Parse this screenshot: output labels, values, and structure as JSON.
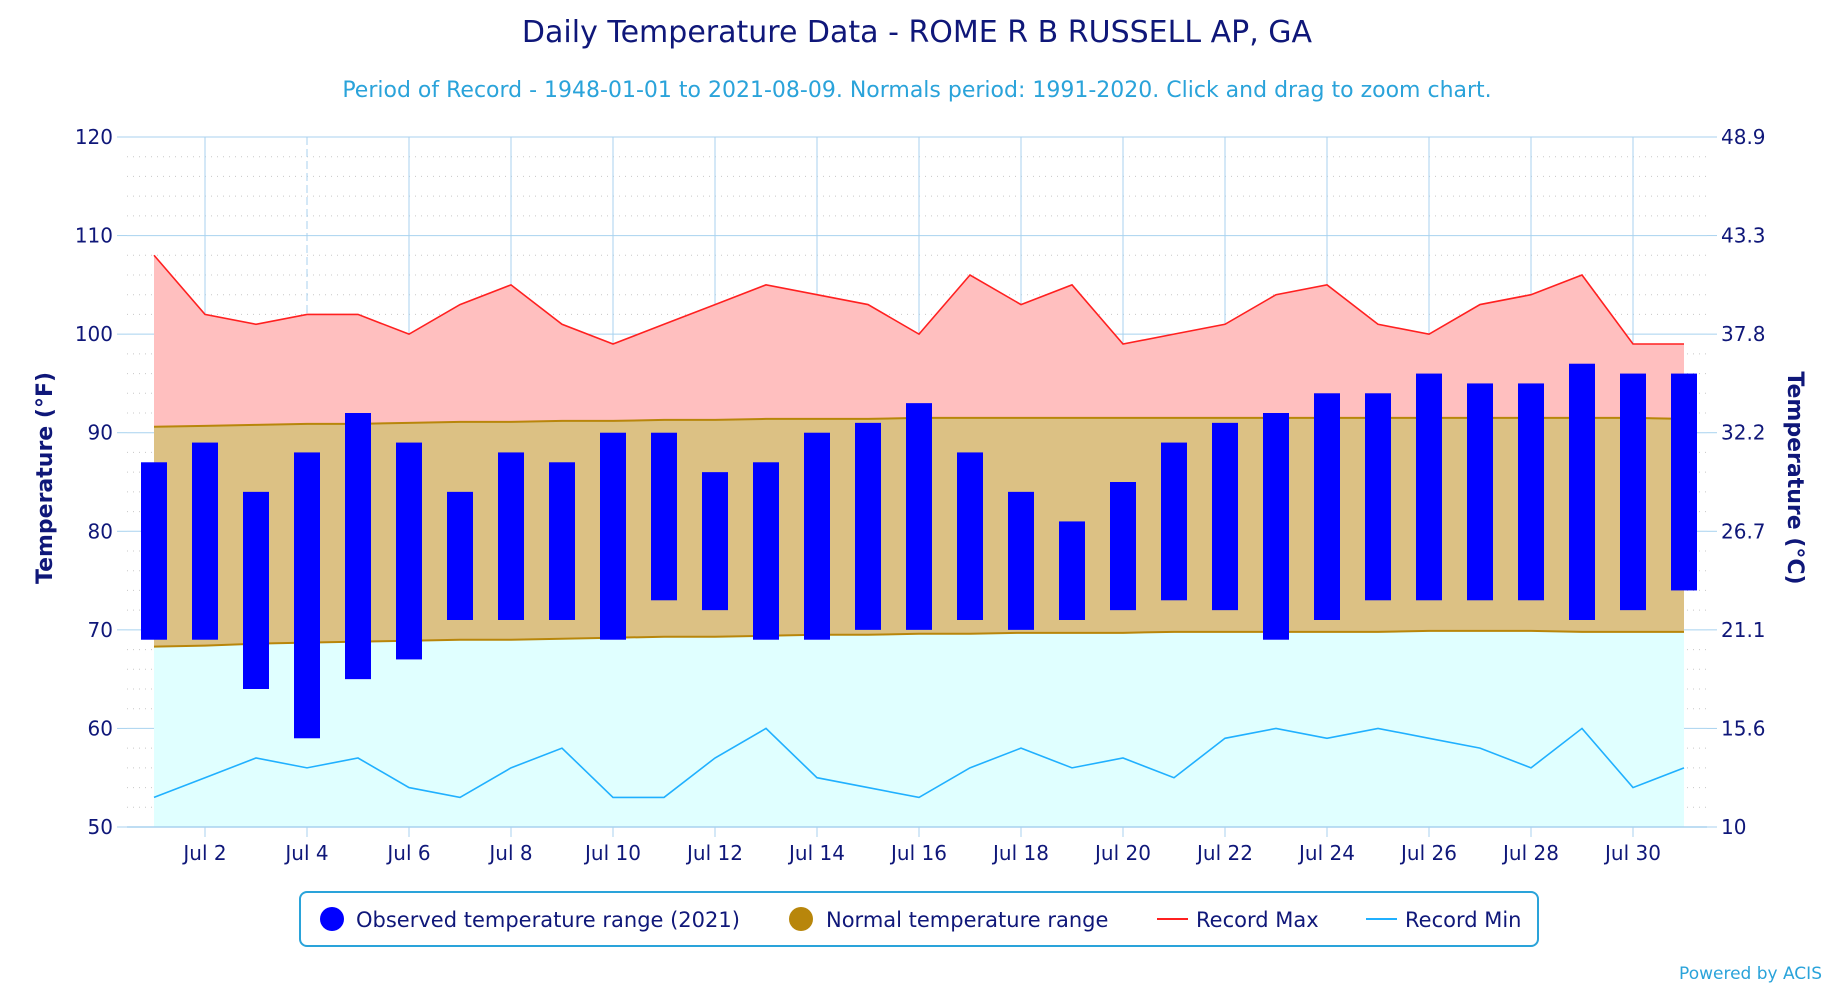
{
  "chart": {
    "title": "Daily Temperature Data - ROME R B RUSSELL AP, GA",
    "subtitle": "Period of Record - 1948-01-01 to 2021-08-09. Normals period: 1991-2020. Click and drag to zoom chart.",
    "y_left_label": "Temperature (°F)",
    "y_right_label": "Temperature (°C)",
    "credit": "Powered by ACIS",
    "legend": {
      "observed": "Observed temperature range (2021)",
      "normal": "Normal temperature range",
      "record_max": "Record Max",
      "record_min": "Record Min"
    }
  },
  "colors": {
    "observed": "#0000ff",
    "normal_fill": "#dcc184",
    "normal_line": "#b8860b",
    "record_max_fill": "#ffbfbf",
    "record_max_line": "#ff2020",
    "record_min_fill": "#e0ffff",
    "record_min_line": "#20b0ff",
    "text": "#0f1779",
    "accent": "#2aa3da"
  },
  "chart_data": {
    "type": "bar",
    "days": [
      1,
      2,
      3,
      4,
      5,
      6,
      7,
      8,
      9,
      10,
      11,
      12,
      13,
      14,
      15,
      16,
      17,
      18,
      19,
      20,
      21,
      22,
      23,
      24,
      25,
      26,
      27,
      28,
      29,
      30,
      31
    ],
    "x_ticks": [
      "Jul 2",
      "Jul 4",
      "Jul 6",
      "Jul 8",
      "Jul 10",
      "Jul 12",
      "Jul 14",
      "Jul 16",
      "Jul 18",
      "Jul 20",
      "Jul 22",
      "Jul 24",
      "Jul 26",
      "Jul 28",
      "Jul 30"
    ],
    "x_tick_days": [
      2,
      4,
      6,
      8,
      10,
      12,
      14,
      16,
      18,
      20,
      22,
      24,
      26,
      28,
      30
    ],
    "ylim": [
      50,
      120
    ],
    "y_ticks_f": [
      50,
      60,
      70,
      80,
      90,
      100,
      110,
      120
    ],
    "y_ticks_c": [
      "10",
      "15.6",
      "21.1",
      "26.7",
      "32.2",
      "37.8",
      "43.3",
      "48.9"
    ],
    "observed_low": [
      69,
      69,
      64,
      59,
      65,
      67,
      71,
      71,
      71,
      69,
      73,
      72,
      69,
      69,
      70,
      70,
      71,
      70,
      71,
      72,
      73,
      72,
      69,
      71,
      73,
      73,
      73,
      73,
      71,
      72,
      74
    ],
    "observed_high": [
      87,
      89,
      84,
      88,
      92,
      89,
      84,
      88,
      87,
      90,
      90,
      86,
      87,
      90,
      91,
      93,
      88,
      84,
      81,
      85,
      89,
      91,
      92,
      94,
      94,
      96,
      95,
      95,
      97,
      96,
      96
    ],
    "normal_high": [
      90.6,
      90.7,
      90.8,
      90.9,
      90.9,
      91,
      91.1,
      91.1,
      91.2,
      91.2,
      91.3,
      91.3,
      91.4,
      91.4,
      91.4,
      91.5,
      91.5,
      91.5,
      91.5,
      91.5,
      91.5,
      91.5,
      91.5,
      91.5,
      91.5,
      91.5,
      91.5,
      91.5,
      91.5,
      91.5,
      91.4
    ],
    "normal_low": [
      68.3,
      68.4,
      68.6,
      68.7,
      68.8,
      68.9,
      69,
      69,
      69.1,
      69.2,
      69.3,
      69.3,
      69.4,
      69.5,
      69.5,
      69.6,
      69.6,
      69.7,
      69.7,
      69.7,
      69.8,
      69.8,
      69.8,
      69.8,
      69.8,
      69.9,
      69.9,
      69.9,
      69.8,
      69.8,
      69.8
    ],
    "record_max": [
      108,
      102,
      101,
      102,
      102,
      100,
      103,
      105,
      101,
      99,
      101,
      103,
      105,
      104,
      103,
      100,
      106,
      103,
      105,
      99,
      100,
      101,
      104,
      105,
      101,
      100,
      103,
      104,
      106,
      99,
      99
    ],
    "record_min": [
      53,
      55,
      57,
      56,
      57,
      54,
      53,
      56,
      58,
      53,
      53,
      57,
      60,
      55,
      54,
      53,
      56,
      58,
      56,
      57,
      55,
      59,
      60,
      59,
      60,
      59,
      58,
      56,
      60,
      54,
      56
    ]
  }
}
